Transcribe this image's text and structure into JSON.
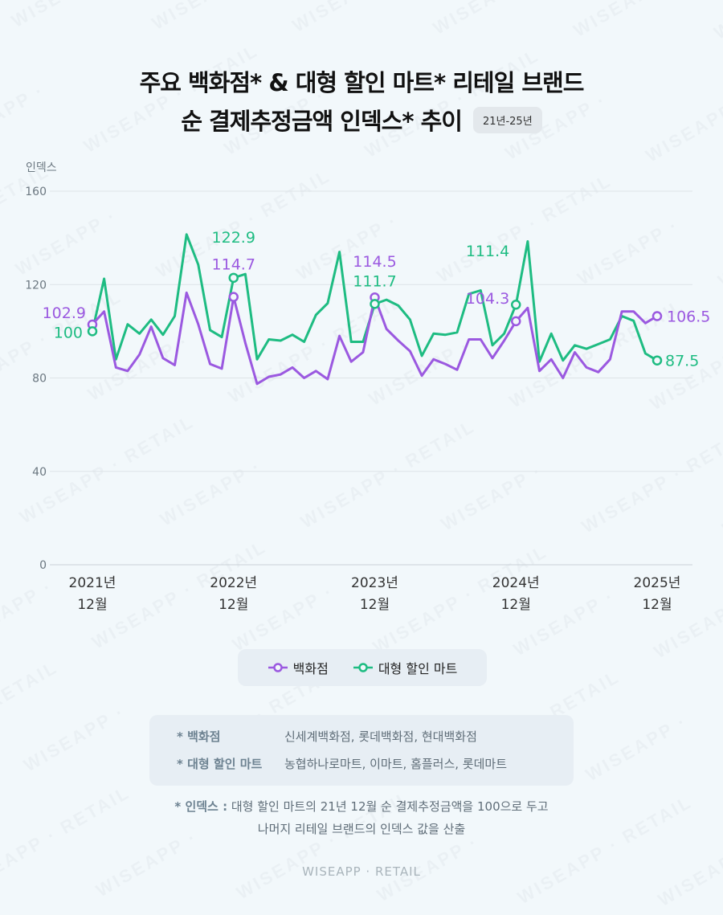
{
  "title": {
    "line1": "주요 백화점* & 대형 할인 마트* 리테일 브랜드",
    "line2": "순 결제추정금액 인덱스* 추이",
    "period": "21년-25년"
  },
  "colors": {
    "department_store": "#9b59e0",
    "discount_mart": "#1ebc82",
    "grid": "#dde3e7",
    "axis_text": "#555555"
  },
  "chart_data": {
    "type": "line",
    "ylabel": "인덱스",
    "ylim": [
      0,
      160
    ],
    "yticks": [
      0,
      40,
      80,
      120,
      160
    ],
    "x": [
      "2021-12",
      "2022-01",
      "2022-02",
      "2022-03",
      "2022-04",
      "2022-05",
      "2022-06",
      "2022-07",
      "2022-08",
      "2022-09",
      "2022-10",
      "2022-11",
      "2022-12",
      "2023-01",
      "2023-02",
      "2023-03",
      "2023-04",
      "2023-05",
      "2023-06",
      "2023-07",
      "2023-08",
      "2023-09",
      "2023-10",
      "2023-11",
      "2023-12",
      "2024-01",
      "2024-02",
      "2024-03",
      "2024-04",
      "2024-05",
      "2024-06",
      "2024-07",
      "2024-08",
      "2024-09",
      "2024-10",
      "2024-11",
      "2024-12",
      "2025-01",
      "2025-02",
      "2025-03",
      "2025-04",
      "2025-05",
      "2025-06",
      "2025-07",
      "2025-08",
      "2025-09",
      "2025-10",
      "2025-11",
      "2025-12"
    ],
    "xticks": [
      {
        "index": 0,
        "line1": "2021년",
        "line2": "12월"
      },
      {
        "index": 12,
        "line1": "2022년",
        "line2": "12월"
      },
      {
        "index": 24,
        "line1": "2023년",
        "line2": "12월"
      },
      {
        "index": 36,
        "line1": "2024년",
        "line2": "12월"
      },
      {
        "index": 48,
        "line1": "2025년",
        "line2": "12월"
      }
    ],
    "series": [
      {
        "name": "백화점",
        "color": "#9b59e0",
        "values": [
          102.9,
          108.5,
          84.5,
          83,
          90,
          102,
          88.5,
          85.5,
          116.5,
          103,
          86,
          84,
          114.7,
          95,
          77.5,
          80.5,
          81.5,
          84.5,
          80,
          83,
          79.5,
          98,
          87,
          91,
          114.5,
          101,
          96,
          91.5,
          81,
          88,
          86,
          83.5,
          96.5,
          96.5,
          88.5,
          96,
          104.3,
          110,
          83,
          88,
          80,
          91,
          84.5,
          82.5,
          88,
          108.5,
          108.5,
          103.5,
          106.5
        ],
        "annotations": [
          {
            "index": 0,
            "label": "102.9"
          },
          {
            "index": 12,
            "label": "114.7"
          },
          {
            "index": 24,
            "label": "114.5"
          },
          {
            "index": 36,
            "label": "104.3"
          },
          {
            "index": 48,
            "label": "106.5"
          }
        ]
      },
      {
        "name": "대형 할인 마트",
        "color": "#1ebc82",
        "values": [
          100,
          122.5,
          88,
          103,
          99,
          105,
          98.5,
          106.5,
          141.5,
          128.5,
          100.5,
          97.5,
          122.9,
          124.5,
          88,
          96.5,
          96,
          98.5,
          95.5,
          107,
          112,
          134,
          95.5,
          95.5,
          111.7,
          113.5,
          111,
          105,
          89.5,
          99,
          98.5,
          99.5,
          116,
          117.5,
          94,
          99,
          111.4,
          138.5,
          87,
          99,
          87.5,
          94,
          92.5,
          94.5,
          96.5,
          106.5,
          104.5,
          90.5,
          87.5
        ],
        "annotations": [
          {
            "index": 0,
            "label": "100"
          },
          {
            "index": 12,
            "label": "122.9"
          },
          {
            "index": 24,
            "label": "111.7"
          },
          {
            "index": 36,
            "label": "111.4"
          },
          {
            "index": 48,
            "label": "87.5"
          }
        ]
      }
    ]
  },
  "legend": {
    "department_store": "백화점",
    "discount_mart": "대형 할인 마트"
  },
  "notes": {
    "department_store_label": "* 백화점",
    "department_store_value": "신세계백화점, 롯데백화점, 현대백화점",
    "discount_mart_label": "* 대형 할인 마트",
    "discount_mart_value": "농협하나로마트, 이마트, 홈플러스, 롯데마트"
  },
  "footnote": {
    "label": "* 인덱스 :",
    "line1": "대형 할인 마트의 21년 12월 순 결제추정금액을 100으로 두고",
    "line2": "나머지 리테일 브랜드의 인덱스 값을 산출"
  },
  "watermark_text": "WISEAPP · RETAIL",
  "brand": "WISEAPP · RETAIL"
}
